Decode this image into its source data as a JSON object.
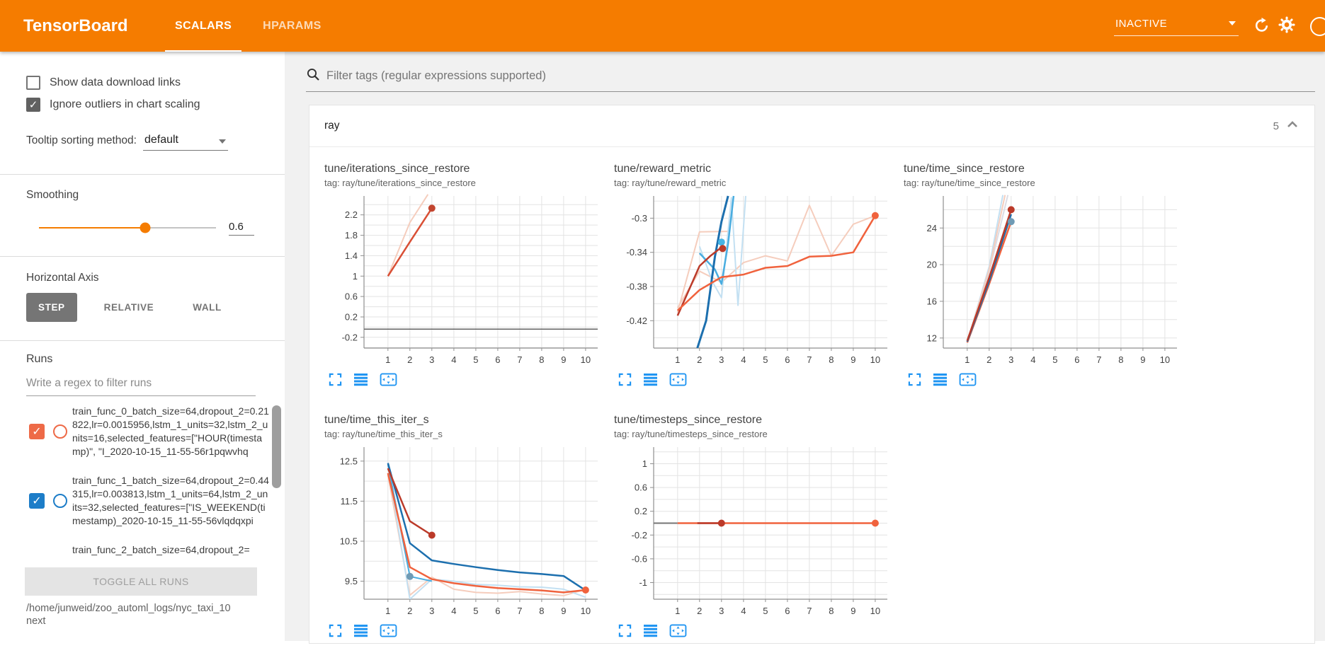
{
  "header": {
    "title": "TensorBoard",
    "tabs": [
      {
        "label": "SCALARS",
        "active": true
      },
      {
        "label": "HPARAMS",
        "active": false
      }
    ],
    "status": "INACTIVE",
    "accent_color": "#f57c00"
  },
  "sidebar": {
    "checkboxes": [
      {
        "label": "Show data download links",
        "checked": false
      },
      {
        "label": "Ignore outliers in chart scaling",
        "checked": true
      }
    ],
    "tooltip_sorting": {
      "label": "Tooltip sorting method:",
      "value": "default"
    },
    "smoothing": {
      "label": "Smoothing",
      "value": "0.6",
      "percent": 60
    },
    "horizontal_axis": {
      "label": "Horizontal Axis",
      "options": [
        {
          "label": "STEP",
          "active": true
        },
        {
          "label": "RELATIVE",
          "active": false
        },
        {
          "label": "WALL",
          "active": false
        }
      ]
    },
    "runs": {
      "label": "Runs",
      "filter_placeholder": "Write a regex to filter runs",
      "items": [
        {
          "name": "train_func_0_batch_size=64,dropout_2=0.21822,lr=0.0015956,lstm_1_units=32,lstm_2_units=16,selected_features=[\"HOUR(timestamp)\", \"I_2020-10-15_11-55-56r1pqwvhq",
          "checked": true,
          "color": "#ee6a47"
        },
        {
          "name": "train_func_1_batch_size=64,dropout_2=0.44315,lr=0.003813,lstm_1_units=64,lstm_2_units=32,selected_features=[\"IS_WEEKEND(timestamp)_2020-10-15_11-55-56vlqdqxpi",
          "checked": true,
          "color": "#1d7dc8"
        },
        {
          "name": "train_func_2_batch_size=64,dropout_2=",
          "checked": null,
          "color": null
        }
      ],
      "toggle_all_label": "TOGGLE ALL RUNS",
      "log_path": "/home/junweid/zoo_automl_logs/nyc_taxi_10next"
    }
  },
  "main": {
    "filter_placeholder": "Filter tags (regular expressions supported)",
    "section": {
      "title": "ray",
      "count": "5"
    }
  },
  "chart_toolbar": [
    {
      "icon": "expand-icon"
    },
    {
      "icon": "runs-selector-icon"
    },
    {
      "icon": "fit-domain-icon"
    }
  ],
  "chart_data": [
    {
      "type": "line",
      "title": "tune/iterations_since_restore",
      "tag": "tag: ray/tune/iterations_since_restore",
      "xticks": [
        1,
        2,
        3,
        4,
        5,
        6,
        7,
        8,
        9,
        10
      ],
      "xlim": [
        -0.09,
        10.55
      ],
      "yticks": [
        -0.2,
        0.2,
        0.6,
        1,
        1.4,
        1.8,
        2.2
      ],
      "ylim": [
        -0.41,
        2.57
      ],
      "series": [
        {
          "name": "train_func_0 (raw)",
          "color": "#f5cdbd",
          "width": 2,
          "points": [
            [
              1,
              1
            ],
            [
              2,
              2.05
            ],
            [
              2.82,
              2.6
            ]
          ]
        },
        {
          "name": "train_func_0 (smoothed)",
          "color": "#d94f35",
          "width": 2.5,
          "points": [
            [
              1,
              1
            ],
            [
              2,
              1.67
            ],
            [
              3,
              2.33
            ]
          ]
        },
        {
          "name": "constant-zero-run",
          "color": "#616161",
          "width": 1.5,
          "points": [
            [
              -0.09,
              -0.04
            ],
            [
              10.55,
              -0.04
            ]
          ]
        }
      ],
      "dots": [
        {
          "x": 3,
          "y": 2.33,
          "color": "#c2452f"
        }
      ]
    },
    {
      "type": "line",
      "title": "tune/reward_metric",
      "tag": "tag: ray/tune/reward_metric",
      "xticks": [
        1,
        2,
        3,
        4,
        5,
        6,
        7,
        8,
        9,
        10
      ],
      "xlim": [
        -0.09,
        10.55
      ],
      "yticks": [
        -0.42,
        -0.38,
        -0.34,
        -0.3
      ],
      "ylim": [
        -0.452,
        -0.274
      ],
      "series": [
        {
          "name": "orange-run (raw)",
          "color": "#f5cdbd",
          "width": 2,
          "points": [
            [
              1,
              -0.405
            ],
            [
              2,
              -0.362
            ],
            [
              3,
              -0.375
            ],
            [
              4,
              -0.352
            ],
            [
              5,
              -0.344
            ],
            [
              6,
              -0.35
            ],
            [
              7,
              -0.285
            ],
            [
              8,
              -0.344
            ],
            [
              9,
              -0.307
            ],
            [
              10,
              -0.297
            ]
          ]
        },
        {
          "name": "red-run (raw)",
          "color": "#f5cdbd",
          "width": 2,
          "points": [
            [
              1,
              -0.41
            ],
            [
              2,
              -0.316
            ],
            [
              3.3,
              -0.3155
            ]
          ]
        },
        {
          "name": "blue-run (raw)",
          "color": "#c3e0f2",
          "width": 2,
          "points": [
            [
              2,
              -0.333
            ],
            [
              2.6,
              -0.375
            ],
            [
              3,
              -0.393
            ],
            [
              3.45,
              -0.276
            ],
            [
              3.75,
              -0.402
            ],
            [
              4.1,
              -0.274
            ]
          ]
        },
        {
          "name": "cyan-run (smoothed)",
          "color": "#49ade0",
          "width": 2.5,
          "points": [
            [
              2,
              -0.341
            ],
            [
              2.7,
              -0.36
            ],
            [
              3,
              -0.377
            ],
            [
              3.3,
              -0.33
            ],
            [
              3.55,
              -0.274
            ]
          ]
        },
        {
          "name": "dark-blue-run (smoothed)",
          "color": "#1c6fae",
          "width": 3,
          "points": [
            [
              1.9,
              -0.452
            ],
            [
              2.3,
              -0.42
            ],
            [
              2.7,
              -0.345
            ],
            [
              3,
              -0.304
            ],
            [
              3.3,
              -0.274
            ]
          ]
        },
        {
          "name": "red-run (smoothed)",
          "color": "#bb3a29",
          "width": 2.5,
          "points": [
            [
              1,
              -0.414
            ],
            [
              2,
              -0.356
            ],
            [
              2.5,
              -0.344
            ],
            [
              3,
              -0.334
            ]
          ]
        },
        {
          "name": "orange-run (smoothed)",
          "color": "#f0623d",
          "width": 2.5,
          "points": [
            [
              1,
              -0.408
            ],
            [
              2,
              -0.384
            ],
            [
              3,
              -0.369
            ],
            [
              4,
              -0.366
            ],
            [
              5,
              -0.358
            ],
            [
              6,
              -0.356
            ],
            [
              7,
              -0.345
            ],
            [
              8,
              -0.344
            ],
            [
              9,
              -0.34
            ],
            [
              10,
              -0.297
            ]
          ]
        }
      ],
      "dots": [
        {
          "x": 3.0,
          "y": -0.328,
          "color": "#45b4e5"
        },
        {
          "x": 3.05,
          "y": -0.3355,
          "color": "#bb3a29"
        },
        {
          "x": 10,
          "y": -0.297,
          "color": "#f0623d"
        }
      ]
    },
    {
      "type": "line",
      "title": "tune/time_since_restore",
      "tag": "tag: ray/tune/time_since_restore",
      "xticks": [
        1,
        2,
        3,
        4,
        5,
        6,
        7,
        8,
        9,
        10
      ],
      "xlim": [
        -0.09,
        10.55
      ],
      "yticks": [
        12,
        16,
        20,
        24
      ],
      "ylim": [
        10.9,
        27.5
      ],
      "series": [
        {
          "name": "gray-run (raw)",
          "color": "#dcdce4",
          "width": 2,
          "points": [
            [
              1,
              11.6
            ],
            [
              2,
              19.2
            ],
            [
              2.85,
              27.6
            ]
          ]
        },
        {
          "name": "blue-run (raw)",
          "color": "#c3e0f2",
          "width": 2,
          "points": [
            [
              1,
              11.5
            ],
            [
              2,
              19.8
            ],
            [
              2.62,
              27.6
            ]
          ]
        },
        {
          "name": "pink-run (raw)",
          "color": "#f5cdbd",
          "width": 2,
          "points": [
            [
              1,
              11.5
            ],
            [
              2,
              19.5
            ],
            [
              2.72,
              27.6
            ]
          ]
        },
        {
          "name": "orange-run (smoothed)",
          "color": "#f0623d",
          "width": 2.5,
          "points": [
            [
              1,
              11.5
            ],
            [
              2,
              17.9
            ],
            [
              3,
              24.7
            ]
          ]
        },
        {
          "name": "dark-blue-run (smoothed)",
          "color": "#1c6fae",
          "width": 2.5,
          "points": [
            [
              1,
              11.6
            ],
            [
              2,
              18.2
            ],
            [
              3,
              25.5
            ]
          ]
        },
        {
          "name": "red-run (smoothed)",
          "color": "#bb3a29",
          "width": 2.5,
          "points": [
            [
              1,
              11.7
            ],
            [
              2,
              18.6
            ],
            [
              3,
              26.0
            ]
          ]
        }
      ],
      "dots": [
        {
          "x": 3,
          "y": 26.0,
          "color": "#bb3a29"
        },
        {
          "x": 3,
          "y": 24.7,
          "color": "#6f9bb5"
        }
      ]
    },
    {
      "type": "line",
      "title": "tune/time_this_iter_s",
      "tag": "tag: ray/tune/time_this_iter_s",
      "xticks": [
        1,
        2,
        3,
        4,
        5,
        6,
        7,
        8,
        9,
        10
      ],
      "xlim": [
        -0.09,
        10.55
      ],
      "yticks": [
        9.5,
        10.5,
        11.5,
        12.5
      ],
      "ylim": [
        9.05,
        12.85
      ],
      "series": [
        {
          "name": "pink-run (raw)",
          "color": "#f5cdbd",
          "width": 2,
          "points": [
            [
              1,
              12.15
            ],
            [
              2,
              9.15
            ],
            [
              3,
              9.6
            ],
            [
              4,
              9.3
            ],
            [
              5,
              9.22
            ],
            [
              6,
              9.2
            ],
            [
              7,
              9.24
            ],
            [
              8,
              9.18
            ],
            [
              9,
              9.14
            ],
            [
              10,
              9.3
            ]
          ]
        },
        {
          "name": "blue-run (raw)",
          "color": "#c3e0f2",
          "width": 2,
          "points": [
            [
              1,
              12.4
            ],
            [
              2,
              9.05
            ],
            [
              3,
              9.55
            ],
            [
              4,
              9.5
            ],
            [
              5,
              9.42
            ],
            [
              6,
              9.4
            ],
            [
              7,
              9.36
            ],
            [
              8,
              9.35
            ],
            [
              9,
              9.3
            ],
            [
              10,
              9.1
            ]
          ]
        },
        {
          "name": "cyan-run (smoothed)",
          "color": "#49ade0",
          "width": 2,
          "points": [
            [
              1,
              12.42
            ],
            [
              2,
              9.62
            ],
            [
              3,
              9.5
            ]
          ]
        },
        {
          "name": "dark-blue-run (smoothed)",
          "color": "#1c6fae",
          "width": 2.5,
          "points": [
            [
              1,
              12.45
            ],
            [
              2,
              10.45
            ],
            [
              3,
              10.02
            ],
            [
              4,
              9.93
            ],
            [
              5,
              9.85
            ],
            [
              6,
              9.78
            ],
            [
              7,
              9.72
            ],
            [
              8,
              9.68
            ],
            [
              9,
              9.63
            ],
            [
              10,
              9.27
            ]
          ]
        },
        {
          "name": "orange-run (smoothed)",
          "color": "#f0623d",
          "width": 2.5,
          "points": [
            [
              1,
              12.2
            ],
            [
              2,
              9.85
            ],
            [
              3,
              9.55
            ],
            [
              4,
              9.45
            ],
            [
              5,
              9.38
            ],
            [
              6,
              9.33
            ],
            [
              7,
              9.3
            ],
            [
              8,
              9.27
            ],
            [
              9,
              9.22
            ],
            [
              10,
              9.28
            ]
          ]
        },
        {
          "name": "red-run (smoothed)",
          "color": "#bb3a29",
          "width": 2.5,
          "points": [
            [
              1,
              12.32
            ],
            [
              2,
              11.0
            ],
            [
              3,
              10.65
            ]
          ]
        }
      ],
      "dots": [
        {
          "x": 3,
          "y": 10.65,
          "color": "#bb3a29"
        },
        {
          "x": 2,
          "y": 9.62,
          "color": "#6f9bb5"
        },
        {
          "x": 10,
          "y": 9.28,
          "color": "#f0623d"
        }
      ]
    },
    {
      "type": "line",
      "title": "tune/timesteps_since_restore",
      "tag": "tag: ray/tune/timesteps_since_restore",
      "xticks": [
        1,
        2,
        3,
        4,
        5,
        6,
        7,
        8,
        9,
        10
      ],
      "xlim": [
        -0.09,
        10.55
      ],
      "yticks": [
        -1,
        -0.6,
        -0.2,
        0.2,
        0.6,
        1
      ],
      "ylim": [
        -1.28,
        1.28
      ],
      "series": [
        {
          "name": "axis-lead-in",
          "color": "#757575",
          "width": 2,
          "points": [
            [
              -0.09,
              0
            ],
            [
              1,
              0
            ]
          ]
        },
        {
          "name": "orange-run (smoothed)",
          "color": "#f0623d",
          "width": 2.5,
          "points": [
            [
              1,
              0
            ],
            [
              10,
              0
            ]
          ]
        },
        {
          "name": "red-run (smoothed)",
          "color": "#bb3a29",
          "width": 2.5,
          "points": [
            [
              1.9,
              0
            ],
            [
              3.05,
              0
            ]
          ]
        }
      ],
      "dots": [
        {
          "x": 3,
          "y": 0,
          "color": "#bb3a29"
        },
        {
          "x": 10,
          "y": 0,
          "color": "#f0623d"
        }
      ]
    }
  ]
}
